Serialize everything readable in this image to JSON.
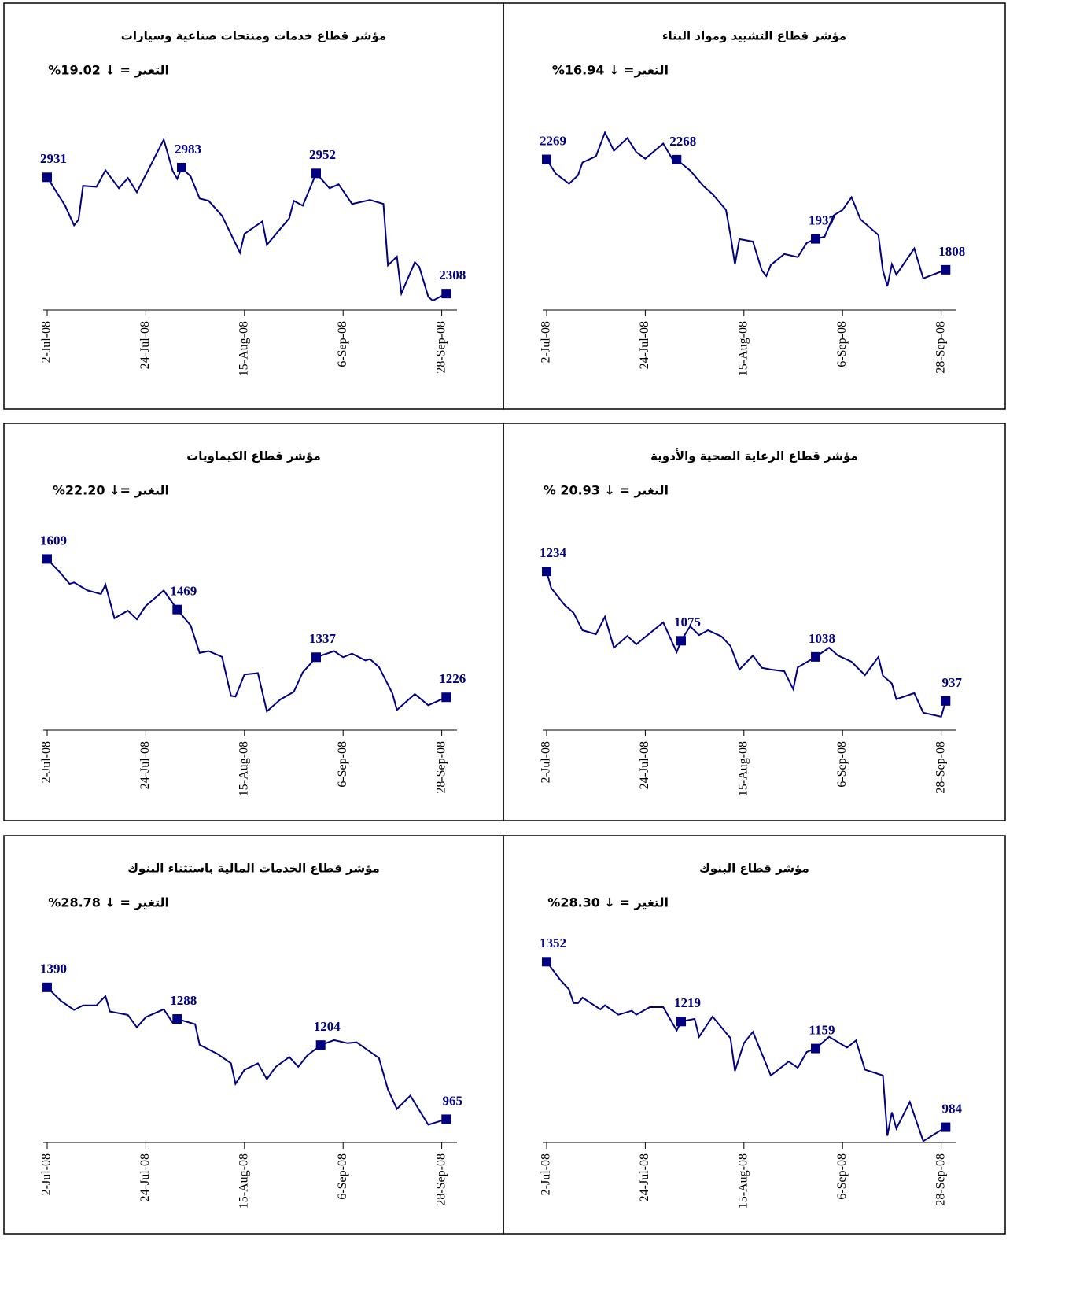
{
  "chart_data": [
    {
      "type": "line",
      "title": "مؤشر قطاع خدمات ومنتجات صناعية وسيارات",
      "change": "التغير = ↓ 19.02%",
      "color": "#000080",
      "x": [
        "2008-07-02",
        "2008-07-06",
        "2008-07-08",
        "2008-07-09",
        "2008-07-10",
        "2008-07-13",
        "2008-07-15",
        "2008-07-18",
        "2008-07-20",
        "2008-07-22",
        "2008-07-28",
        "2008-07-30",
        "2008-07-31",
        "2008-08-01",
        "2008-08-03",
        "2008-08-05",
        "2008-08-07",
        "2008-08-10",
        "2008-08-14",
        "2008-08-15",
        "2008-08-19",
        "2008-08-20",
        "2008-08-25",
        "2008-08-26",
        "2008-08-28",
        "2008-08-31",
        "2008-09-03",
        "2008-09-05",
        "2008-09-08",
        "2008-09-12",
        "2008-09-15",
        "2008-09-16",
        "2008-09-18",
        "2008-09-19",
        "2008-09-22",
        "2008-09-23",
        "2008-09-25",
        "2008-09-26",
        "2008-09-29"
      ],
      "values": [
        2931,
        2779,
        2674,
        2704,
        2885,
        2880,
        2969,
        2872,
        2927,
        2851,
        3133,
        2965,
        2923,
        2983,
        2935,
        2817,
        2805,
        2725,
        2527,
        2628,
        2695,
        2569,
        2712,
        2805,
        2779,
        2952,
        2872,
        2893,
        2788,
        2809,
        2788,
        2459,
        2506,
        2308,
        2476,
        2451,
        2291,
        2270,
        2308
      ],
      "points": {
        "x": [
          "2008-07-02",
          "2008-08-01",
          "2008-08-31",
          "2008-09-29"
        ],
        "values": [
          2931,
          2983,
          2952,
          2308
        ]
      },
      "xlim": [
        "2008-07-02",
        "2008-09-30"
      ],
      "ylim": [
        2220,
        3400
      ],
      "xticks": [
        {
          "value": "2008-07-02",
          "label": "2-Jul-08"
        },
        {
          "value": "2008-07-24",
          "label": "24-Jul-08"
        },
        {
          "value": "2008-08-15",
          "label": "15-Aug-08"
        },
        {
          "value": "2008-09-06",
          "label": "6-Sep-08"
        },
        {
          "value": "2008-09-28",
          "label": "28-Sep-08"
        }
      ]
    },
    {
      "type": "line",
      "title": "مؤشر قطاع التشييد ومواد البناء",
      "change": "التغير= ↓ 16.94%",
      "color": "#000080",
      "x": [
        "2008-07-02",
        "2008-07-04",
        "2008-07-07",
        "2008-07-09",
        "2008-07-10",
        "2008-07-13",
        "2008-07-15",
        "2008-07-17",
        "2008-07-20",
        "2008-07-22",
        "2008-07-24",
        "2008-07-28",
        "2008-07-30",
        "2008-07-31",
        "2008-08-03",
        "2008-08-06",
        "2008-08-08",
        "2008-08-11",
        "2008-08-12",
        "2008-08-13",
        "2008-08-14",
        "2008-08-17",
        "2008-08-19",
        "2008-08-20",
        "2008-08-21",
        "2008-08-24",
        "2008-08-27",
        "2008-08-29",
        "2008-08-31",
        "2008-09-02",
        "2008-09-04",
        "2008-09-06",
        "2008-09-08",
        "2008-09-10",
        "2008-09-14",
        "2008-09-15",
        "2008-09-16",
        "2008-09-17",
        "2008-09-18",
        "2008-09-22",
        "2008-09-24",
        "2008-09-29"
      ],
      "values": [
        2269,
        2210,
        2167,
        2203,
        2256,
        2282,
        2381,
        2305,
        2358,
        2299,
        2272,
        2335,
        2272,
        2268,
        2223,
        2157,
        2124,
        2058,
        1953,
        1831,
        1936,
        1926,
        1805,
        1782,
        1828,
        1874,
        1861,
        1920,
        1937,
        1946,
        2035,
        2058,
        2111,
        2019,
        1953,
        1805,
        1739,
        1831,
        1788,
        1897,
        1772,
        1808
      ],
      "points": {
        "x": [
          "2008-07-02",
          "2008-07-31",
          "2008-08-31",
          "2008-09-29"
        ],
        "values": [
          2269,
          2268,
          1937,
          1808
        ]
      },
      "xlim": [
        "2008-07-02",
        "2008-09-30"
      ],
      "ylim": [
        1640,
        2560
      ],
      "xticks": [
        {
          "value": "2008-07-02",
          "label": "2-Jul-08"
        },
        {
          "value": "2008-07-24",
          "label": "24-Jul-08"
        },
        {
          "value": "2008-08-15",
          "label": "15-Aug-08"
        },
        {
          "value": "2008-09-06",
          "label": "6-Sep-08"
        },
        {
          "value": "2008-09-28",
          "label": "28-Sep-08"
        }
      ]
    },
    {
      "type": "line",
      "title": "مؤشر قطاع الكيماويات",
      "change": "التغير =↓ 22.20%",
      "color": "#000080",
      "x": [
        "2008-07-02",
        "2008-07-05",
        "2008-07-07",
        "2008-07-08",
        "2008-07-11",
        "2008-07-14",
        "2008-07-15",
        "2008-07-17",
        "2008-07-20",
        "2008-07-22",
        "2008-07-24",
        "2008-07-28",
        "2008-07-31",
        "2008-08-03",
        "2008-08-05",
        "2008-08-07",
        "2008-08-10",
        "2008-08-12",
        "2008-08-13",
        "2008-08-15",
        "2008-08-18",
        "2008-08-20",
        "2008-08-23",
        "2008-08-26",
        "2008-08-28",
        "2008-08-31",
        "2008-09-04",
        "2008-09-06",
        "2008-09-08",
        "2008-09-11",
        "2008-09-12",
        "2008-09-14",
        "2008-09-17",
        "2008-09-18",
        "2008-09-22",
        "2008-09-25",
        "2008-09-29"
      ],
      "values": [
        1609,
        1570,
        1540,
        1544,
        1522,
        1512,
        1538,
        1445,
        1466,
        1442,
        1479,
        1522,
        1469,
        1425,
        1349,
        1354,
        1338,
        1230,
        1228,
        1289,
        1293,
        1187,
        1220,
        1241,
        1295,
        1337,
        1354,
        1337,
        1347,
        1328,
        1332,
        1310,
        1237,
        1191,
        1235,
        1204,
        1226
      ],
      "points": {
        "x": [
          "2008-07-02",
          "2008-07-31",
          "2008-08-31",
          "2008-09-29"
        ],
        "values": [
          1609,
          1469,
          1337,
          1226
        ]
      },
      "xlim": [
        "2008-07-02",
        "2008-09-30"
      ],
      "ylim": [
        1135,
        1745
      ],
      "xticks": [
        {
          "value": "2008-07-02",
          "label": "2-Jul-08"
        },
        {
          "value": "2008-07-24",
          "label": "24-Jul-08"
        },
        {
          "value": "2008-08-15",
          "label": "15-Aug-08"
        },
        {
          "value": "2008-09-06",
          "label": "6-Sep-08"
        },
        {
          "value": "2008-09-28",
          "label": "28-Sep-08"
        }
      ]
    },
    {
      "type": "line",
      "title": "مؤشر قطاع الرعاية الصحية والأدوية",
      "change": "التغير = ↓ 20.93 %",
      "color": "#000080",
      "x": [
        "2008-07-02",
        "2008-07-03",
        "2008-07-06",
        "2008-07-08",
        "2008-07-10",
        "2008-07-13",
        "2008-07-15",
        "2008-07-17",
        "2008-07-20",
        "2008-07-22",
        "2008-07-28",
        "2008-07-31",
        "2008-08-01",
        "2008-08-03",
        "2008-08-05",
        "2008-08-07",
        "2008-08-10",
        "2008-08-12",
        "2008-08-14",
        "2008-08-17",
        "2008-08-19",
        "2008-08-21",
        "2008-08-24",
        "2008-08-26",
        "2008-08-27",
        "2008-08-31",
        "2008-09-03",
        "2008-09-05",
        "2008-09-08",
        "2008-09-11",
        "2008-09-14",
        "2008-09-15",
        "2008-09-17",
        "2008-09-18",
        "2008-09-22",
        "2008-09-24",
        "2008-09-28",
        "2008-09-29"
      ],
      "values": [
        1234,
        1196,
        1157,
        1139,
        1099,
        1090,
        1130,
        1059,
        1086,
        1067,
        1117,
        1049,
        1075,
        1108,
        1088,
        1099,
        1085,
        1063,
        1009,
        1041,
        1013,
        1009,
        1005,
        964,
        1014,
        1038,
        1059,
        1041,
        1027,
        996,
        1038,
        995,
        977,
        941,
        955,
        910,
        901,
        937
      ],
      "points": {
        "x": [
          "2008-07-02",
          "2008-08-01",
          "2008-08-31",
          "2008-09-29"
        ],
        "values": [
          1234,
          1075,
          1038,
          937
        ]
      },
      "xlim": [
        "2008-07-02",
        "2008-09-30"
      ],
      "ylim": [
        870,
        1375
      ],
      "xticks": [
        {
          "value": "2008-07-02",
          "label": "2-Jul-08"
        },
        {
          "value": "2008-07-24",
          "label": "24-Jul-08"
        },
        {
          "value": "2008-08-15",
          "label": "15-Aug-08"
        },
        {
          "value": "2008-09-06",
          "label": "6-Sep-08"
        },
        {
          "value": "2008-09-28",
          "label": "28-Sep-08"
        }
      ]
    },
    {
      "type": "line",
      "title": "مؤشر قطاع الخدمات المالية باستثناء البنوك",
      "change": "التغير = ↓ 28.78%",
      "color": "#000080",
      "x": [
        "2008-07-02",
        "2008-07-05",
        "2008-07-08",
        "2008-07-10",
        "2008-07-13",
        "2008-07-15",
        "2008-07-16",
        "2008-07-20",
        "2008-07-22",
        "2008-07-24",
        "2008-07-28",
        "2008-07-30",
        "2008-07-31",
        "2008-08-04",
        "2008-08-05",
        "2008-08-09",
        "2008-08-12",
        "2008-08-13",
        "2008-08-15",
        "2008-08-18",
        "2008-08-20",
        "2008-08-22",
        "2008-08-25",
        "2008-08-27",
        "2008-08-29",
        "2008-09-01",
        "2008-09-04",
        "2008-09-07",
        "2008-09-09",
        "2008-09-14",
        "2008-09-16",
        "2008-09-18",
        "2008-09-21",
        "2008-09-25",
        "2008-09-29"
      ],
      "values": [
        1390,
        1347,
        1317,
        1332,
        1332,
        1362,
        1312,
        1301,
        1261,
        1294,
        1319,
        1276,
        1288,
        1271,
        1205,
        1175,
        1145,
        1079,
        1124,
        1145,
        1094,
        1134,
        1165,
        1134,
        1170,
        1204,
        1220,
        1210,
        1213,
        1162,
        1061,
        998,
        1041,
        947,
        965
      ],
      "points": {
        "x": [
          "2008-07-02",
          "2008-07-31",
          "2008-09-01",
          "2008-09-29"
        ],
        "values": [
          1390,
          1288,
          1204,
          965
        ]
      },
      "xlim": [
        "2008-07-02",
        "2008-09-30"
      ],
      "ylim": [
        890,
        1600
      ],
      "xticks": [
        {
          "value": "2008-07-02",
          "label": "2-Jul-08"
        },
        {
          "value": "2008-07-24",
          "label": "24-Jul-08"
        },
        {
          "value": "2008-08-15",
          "label": "15-Aug-08"
        },
        {
          "value": "2008-09-06",
          "label": "6-Sep-08"
        },
        {
          "value": "2008-09-28",
          "label": "28-Sep-08"
        }
      ]
    },
    {
      "type": "line",
      "title": "مؤشر قطاع البنوك",
      "change": "التغير = ↓ 28.30%",
      "color": "#000080",
      "x": [
        "2008-07-02",
        "2008-07-05",
        "2008-07-07",
        "2008-07-08",
        "2008-07-09",
        "2008-07-10",
        "2008-07-14",
        "2008-07-15",
        "2008-07-18",
        "2008-07-21",
        "2008-07-22",
        "2008-07-25",
        "2008-07-28",
        "2008-07-31",
        "2008-08-01",
        "2008-08-04",
        "2008-08-05",
        "2008-08-08",
        "2008-08-11",
        "2008-08-12",
        "2008-08-13",
        "2008-08-15",
        "2008-08-17",
        "2008-08-21",
        "2008-08-25",
        "2008-08-27",
        "2008-08-29",
        "2008-08-31",
        "2008-09-03",
        "2008-09-07",
        "2008-09-09",
        "2008-09-11",
        "2008-09-15",
        "2008-09-16",
        "2008-09-17",
        "2008-09-18",
        "2008-09-21",
        "2008-09-24",
        "2008-09-29"
      ],
      "values": [
        1352,
        1312,
        1290,
        1260,
        1260,
        1272,
        1246,
        1255,
        1234,
        1243,
        1234,
        1251,
        1251,
        1199,
        1219,
        1225,
        1185,
        1230,
        1194,
        1182,
        1109,
        1171,
        1196,
        1099,
        1130,
        1116,
        1151,
        1159,
        1185,
        1161,
        1177,
        1112,
        1099,
        965,
        1017,
        981,
        1040,
        953,
        984
      ],
      "points": {
        "x": [
          "2008-07-02",
          "2008-08-01",
          "2008-08-31",
          "2008-09-29"
        ],
        "values": [
          1352,
          1219,
          1159,
          984
        ]
      },
      "xlim": [
        "2008-07-02",
        "2008-09-30"
      ],
      "ylim": [
        950,
        1440
      ],
      "xticks": [
        {
          "value": "2008-07-02",
          "label": "2-Jul-08"
        },
        {
          "value": "2008-07-24",
          "label": "24-Jul-08"
        },
        {
          "value": "2008-08-15",
          "label": "15-Aug-08"
        },
        {
          "value": "2008-09-06",
          "label": "6-Sep-08"
        },
        {
          "value": "2008-09-28",
          "label": "28-Sep-08"
        }
      ]
    }
  ]
}
